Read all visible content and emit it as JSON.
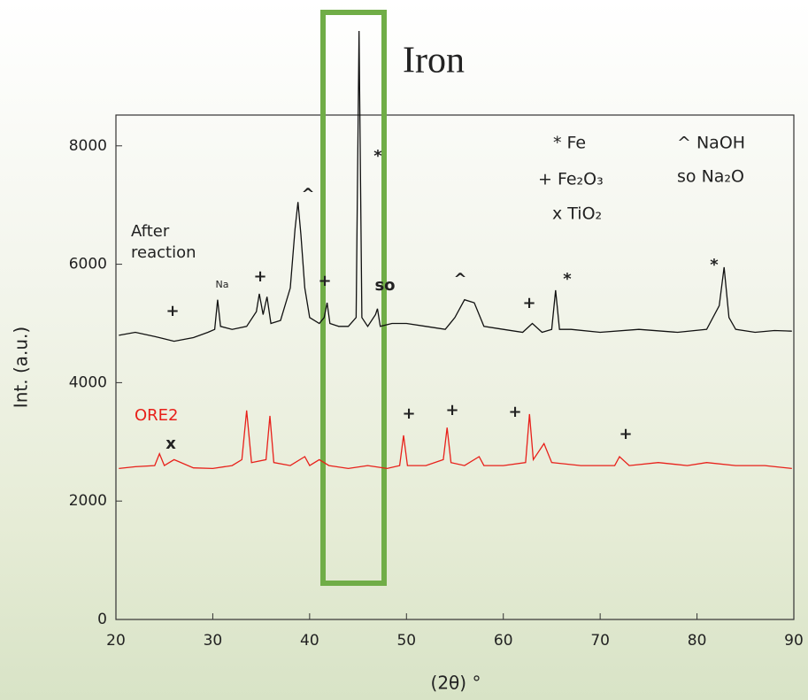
{
  "chart_data": {
    "type": "line",
    "x_label": "(2θ) °",
    "y_label": "Int. (a.u.)",
    "highlight_label": "Iron",
    "xlim": [
      20,
      90
    ],
    "xticks": [
      20,
      30,
      40,
      50,
      60,
      70,
      80,
      90
    ],
    "ylim": [
      0,
      8520
    ],
    "yticks": [
      0,
      2000,
      4000,
      6000,
      8000
    ],
    "series": [
      {
        "name": "After reaction",
        "color": "#111111",
        "x": [
          20.3,
          22,
          24,
          26,
          28,
          29.5,
          30.2,
          30.5,
          30.8,
          32,
          33.5,
          34.5,
          34.8,
          35.2,
          35.6,
          36,
          37,
          38,
          38.5,
          38.8,
          39.1,
          39.5,
          40,
          41,
          41.5,
          41.8,
          42.1,
          43,
          44,
          44.8,
          45.1,
          45.4,
          46,
          46.8,
          47,
          47.3,
          48.5,
          50,
          52,
          54,
          55,
          56,
          57,
          58,
          60,
          62,
          63,
          64,
          65,
          65.4,
          65.8,
          67,
          70,
          74,
          78,
          81,
          82.3,
          82.8,
          83.3,
          84,
          86,
          88,
          89.8
        ],
        "values": [
          4800,
          4850,
          4780,
          4700,
          4760,
          4850,
          4900,
          5400,
          4950,
          4900,
          4950,
          5200,
          5500,
          5150,
          5450,
          5000,
          5050,
          5600,
          6600,
          7050,
          6500,
          5600,
          5100,
          5000,
          5100,
          5350,
          5000,
          4950,
          4950,
          5100,
          9940,
          5100,
          4950,
          5150,
          5250,
          4950,
          5000,
          5000,
          4950,
          4900,
          5100,
          5400,
          5350,
          4950,
          4900,
          4850,
          5000,
          4850,
          4900,
          5560,
          4900,
          4900,
          4850,
          4900,
          4850,
          4900,
          5300,
          5950,
          5100,
          4900,
          4850,
          4880,
          4870
        ]
      },
      {
        "name": "ORE2",
        "color": "#e8201a",
        "x": [
          20.3,
          22,
          24,
          24.5,
          25,
          26,
          28,
          30,
          32,
          33,
          33.5,
          34,
          35.5,
          35.9,
          36.3,
          38,
          39.5,
          40,
          41,
          42,
          44,
          46,
          48,
          49.3,
          49.7,
          50.1,
          52,
          53.8,
          54.2,
          54.6,
          56,
          57.5,
          58,
          60,
          62.3,
          62.7,
          63.1,
          64.2,
          65,
          68,
          71.5,
          72,
          73,
          76,
          79,
          81,
          84,
          87,
          89.8
        ],
        "values": [
          2550,
          2580,
          2600,
          2800,
          2600,
          2700,
          2560,
          2550,
          2600,
          2700,
          3530,
          2650,
          2700,
          3440,
          2650,
          2600,
          2750,
          2600,
          2700,
          2600,
          2550,
          2600,
          2550,
          2600,
          3110,
          2600,
          2600,
          2700,
          3240,
          2650,
          2600,
          2750,
          2600,
          2600,
          2650,
          3470,
          2700,
          2970,
          2650,
          2600,
          2600,
          2750,
          2600,
          2650,
          2600,
          2650,
          2600,
          2600,
          2550
        ]
      }
    ],
    "legend": [
      "* Fe",
      "^ NaOH",
      "+ Fe₂O₃",
      "so Na₂O",
      "x TiO₂"
    ],
    "annotations": [
      "+",
      "Na",
      "+",
      "^",
      "+",
      "so",
      "*",
      "^",
      "+",
      "*",
      "*",
      "x",
      "+",
      "+",
      "+",
      "+"
    ]
  }
}
